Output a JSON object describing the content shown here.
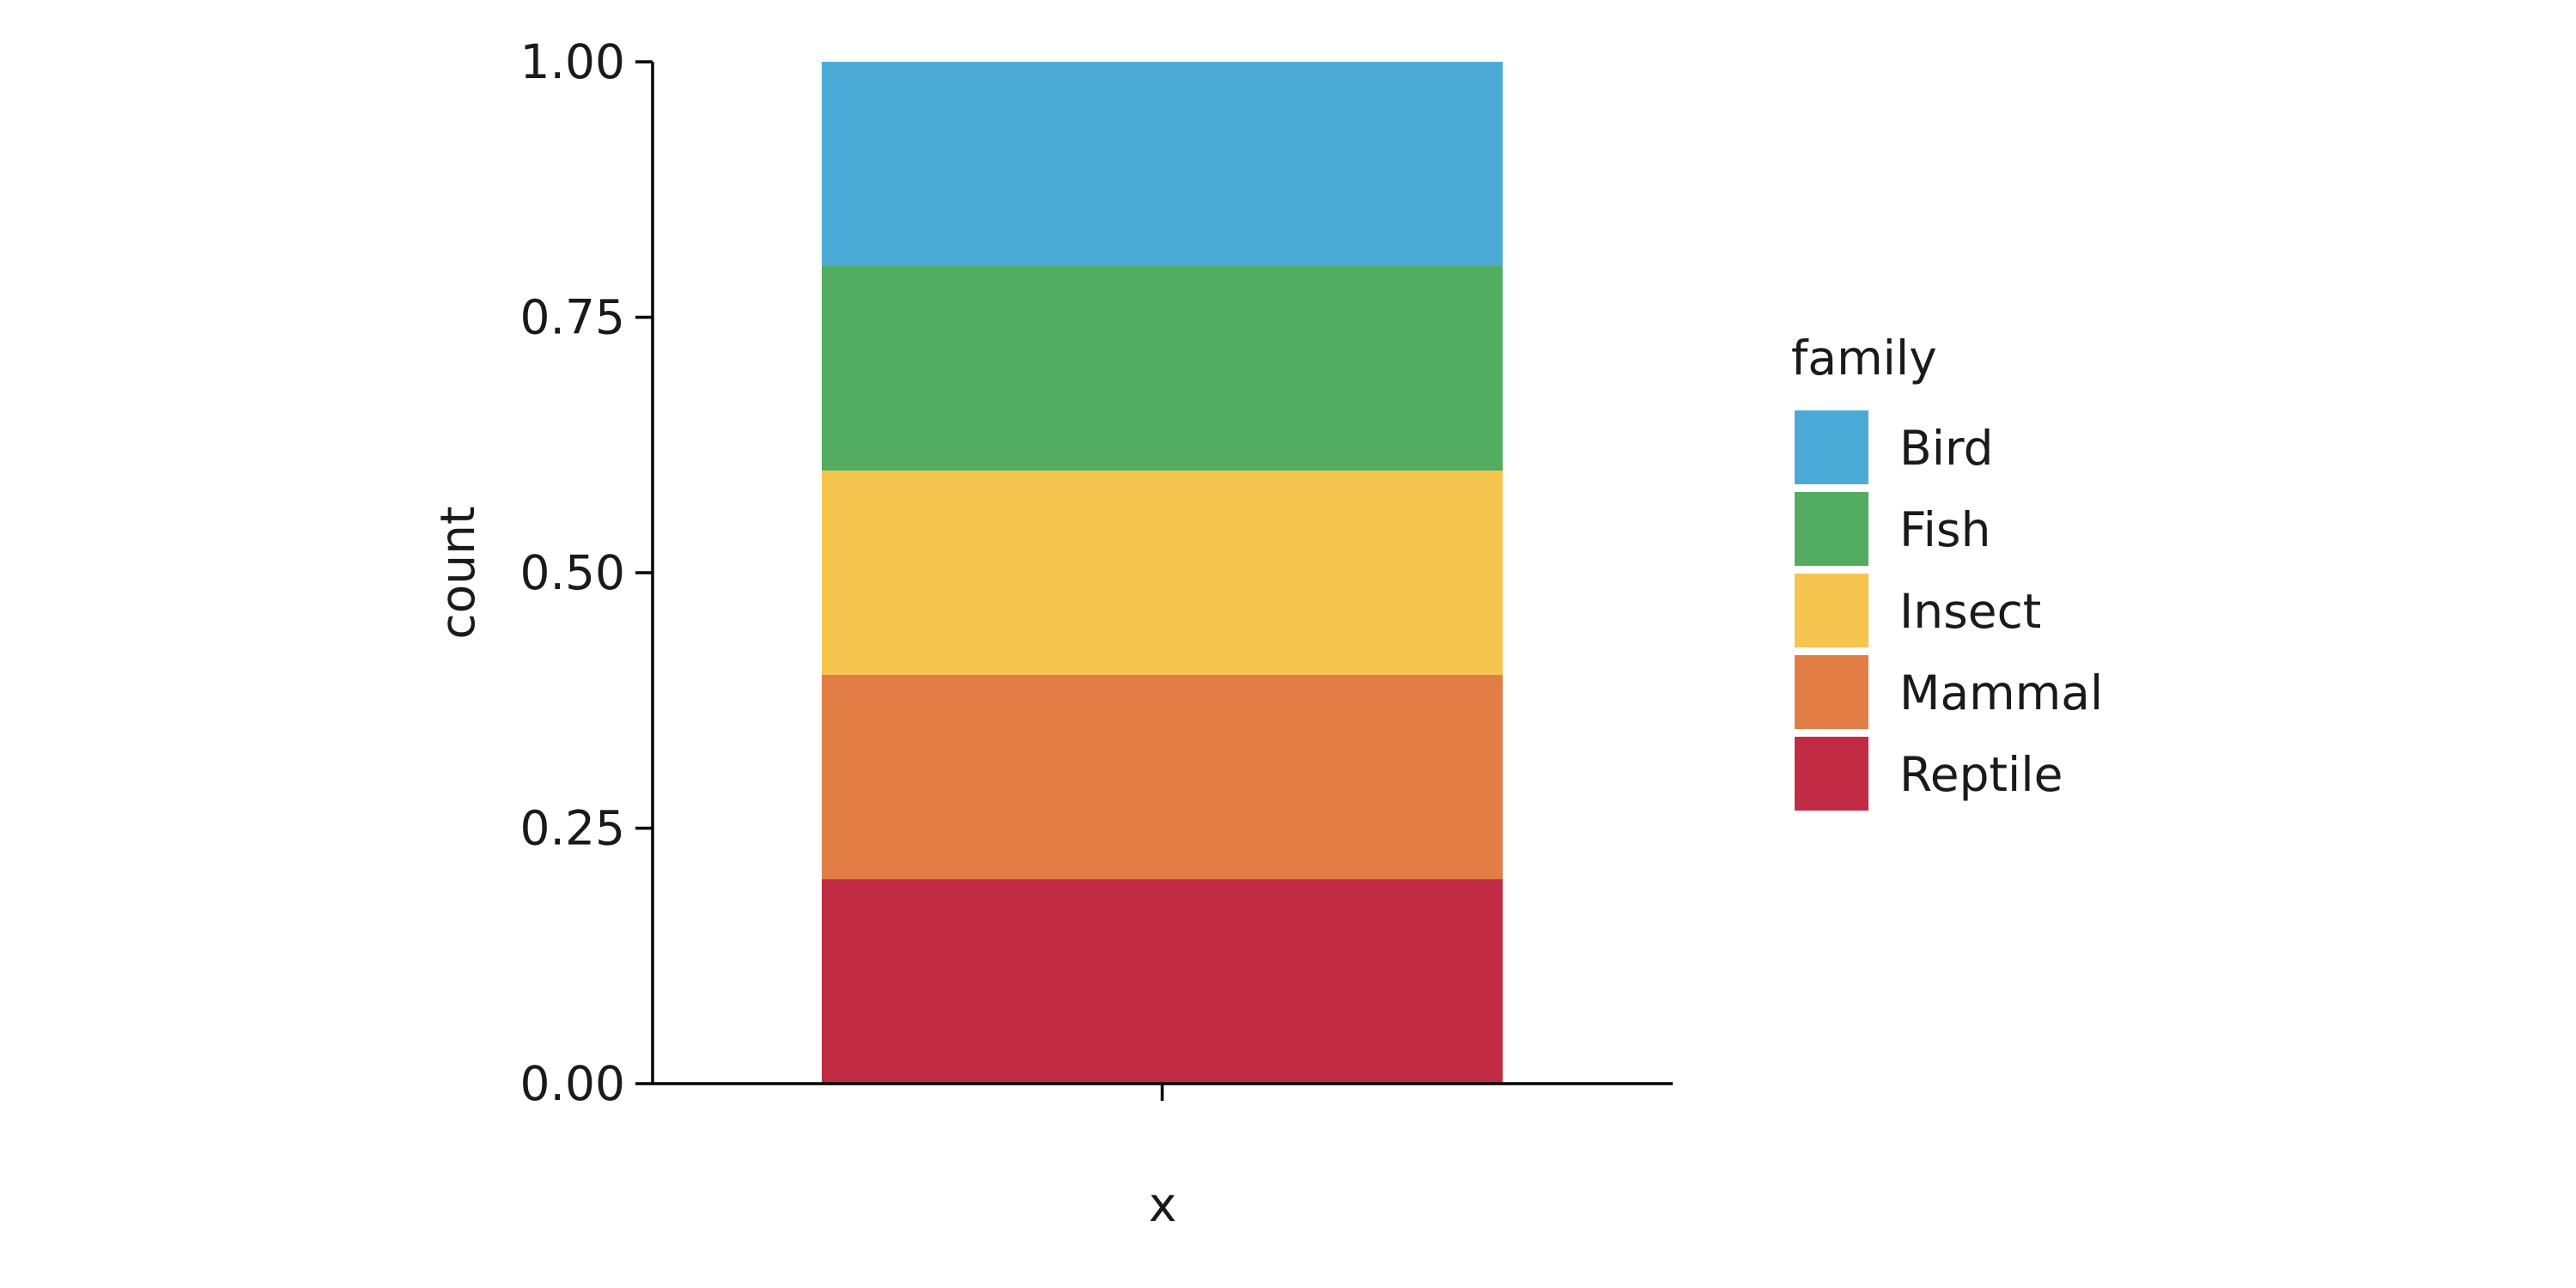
{
  "chart_data": {
    "type": "bar",
    "stacked": true,
    "categories": [
      ""
    ],
    "xlabel": "x",
    "ylabel": "count",
    "ylim": [
      0,
      1
    ],
    "yticks": [
      {
        "value": 0,
        "label": "0.00"
      },
      {
        "value": 0.25,
        "label": "0.25"
      },
      {
        "value": 0.5,
        "label": "0.50"
      },
      {
        "value": 0.75,
        "label": "0.75"
      },
      {
        "value": 1,
        "label": "1.00"
      }
    ],
    "grid": false,
    "legend": {
      "title": "family",
      "placement": "right"
    },
    "series": [
      {
        "name": "Reptile",
        "values": [
          0.2
        ],
        "color": "#c12c44"
      },
      {
        "name": "Mammal",
        "values": [
          0.2
        ],
        "color": "#e27d46"
      },
      {
        "name": "Insect",
        "values": [
          0.2
        ],
        "color": "#f5c54f"
      },
      {
        "name": "Fish",
        "values": [
          0.2
        ],
        "color": "#52ad61"
      },
      {
        "name": "Bird",
        "values": [
          0.2
        ],
        "color": "#4cabd6"
      }
    ]
  }
}
